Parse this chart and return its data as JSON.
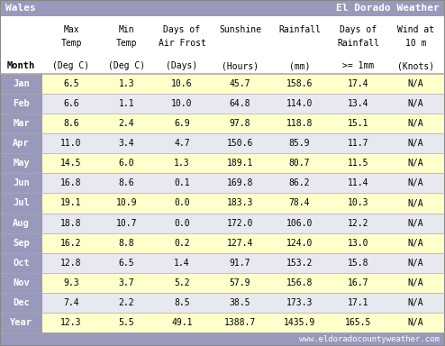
{
  "title_left": "Wales",
  "title_right": "El Dorado Weather",
  "title_bg": "#9999bb",
  "title_fg": "white",
  "col_headers_line1": [
    "Max",
    "Min",
    "Days of",
    "Sunshine",
    "Rainfall",
    "Days of",
    "Wind at"
  ],
  "col_headers_line2": [
    "Temp",
    "Temp",
    "Air Frost",
    "",
    "",
    "Rainfall",
    "10 m"
  ],
  "sub_headers": [
    "(Deg C)",
    "(Deg C)",
    "(Days)",
    "(Hours)",
    "(mm)",
    ">= 1mm",
    "(Knots)"
  ],
  "months": [
    "Jan",
    "Feb",
    "Mar",
    "Apr",
    "May",
    "Jun",
    "Jul",
    "Aug",
    "Sep",
    "Oct",
    "Nov",
    "Dec",
    "Year"
  ],
  "data": [
    [
      "6.5",
      "1.3",
      "10.6",
      "45.7",
      "158.6",
      "17.4",
      "N/A"
    ],
    [
      "6.6",
      "1.1",
      "10.0",
      "64.8",
      "114.0",
      "13.4",
      "N/A"
    ],
    [
      "8.6",
      "2.4",
      "6.9",
      "97.8",
      "118.8",
      "15.1",
      "N/A"
    ],
    [
      "11.0",
      "3.4",
      "4.7",
      "150.6",
      "85.9",
      "11.7",
      "N/A"
    ],
    [
      "14.5",
      "6.0",
      "1.3",
      "189.1",
      "80.7",
      "11.5",
      "N/A"
    ],
    [
      "16.8",
      "8.6",
      "0.1",
      "169.8",
      "86.2",
      "11.4",
      "N/A"
    ],
    [
      "19.1",
      "10.9",
      "0.0",
      "183.3",
      "78.4",
      "10.3",
      "N/A"
    ],
    [
      "18.8",
      "10.7",
      "0.0",
      "172.0",
      "106.0",
      "12.2",
      "N/A"
    ],
    [
      "16.2",
      "8.8",
      "0.2",
      "127.4",
      "124.0",
      "13.0",
      "N/A"
    ],
    [
      "12.8",
      "6.5",
      "1.4",
      "91.7",
      "153.2",
      "15.8",
      "N/A"
    ],
    [
      "9.3",
      "3.7",
      "5.2",
      "57.9",
      "156.8",
      "16.7",
      "N/A"
    ],
    [
      "7.4",
      "2.2",
      "8.5",
      "38.5",
      "173.3",
      "17.1",
      "N/A"
    ],
    [
      "12.3",
      "5.5",
      "49.1",
      "1388.7",
      "1435.9",
      "165.5",
      "N/A"
    ]
  ],
  "month_col_bg": "#9999bb",
  "month_col_fg": "white",
  "row_bg_even": "#ffffcc",
  "row_bg_odd": "#e8e8f0",
  "footer_text": "www.eldoradocountyweather.com",
  "footer_bg": "#9999bb",
  "footer_fg": "white",
  "border_color": "#aaaaaa",
  "header_label": "Month"
}
